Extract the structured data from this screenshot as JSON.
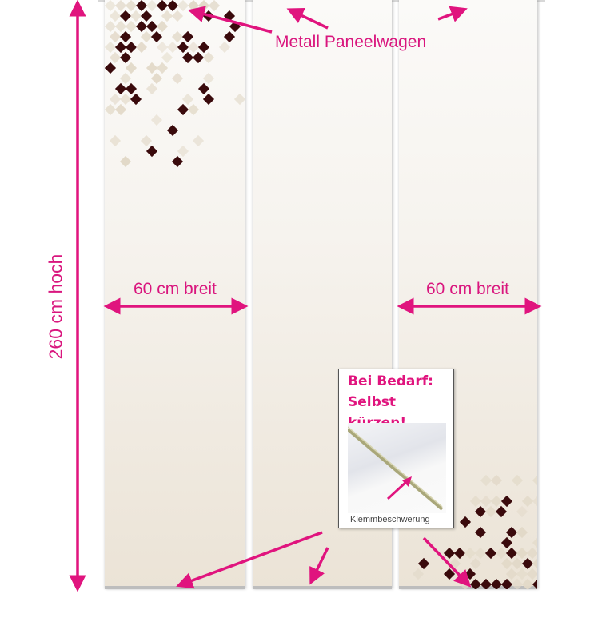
{
  "labels": {
    "height": "260 cm hoch",
    "width_left": "60 cm breit",
    "width_right": "60 cm breit",
    "carriage": "Metall Paneelwagen"
  },
  "inset": {
    "title_line1": "Bei Bedarf:",
    "title_line2": "Selbst kürzen!",
    "caption": "Klemmbeschwerung"
  },
  "colors": {
    "accent": "#e0147e",
    "diamond_dark": "#3a0a0c",
    "diamond_light": "#e2d9c8"
  }
}
